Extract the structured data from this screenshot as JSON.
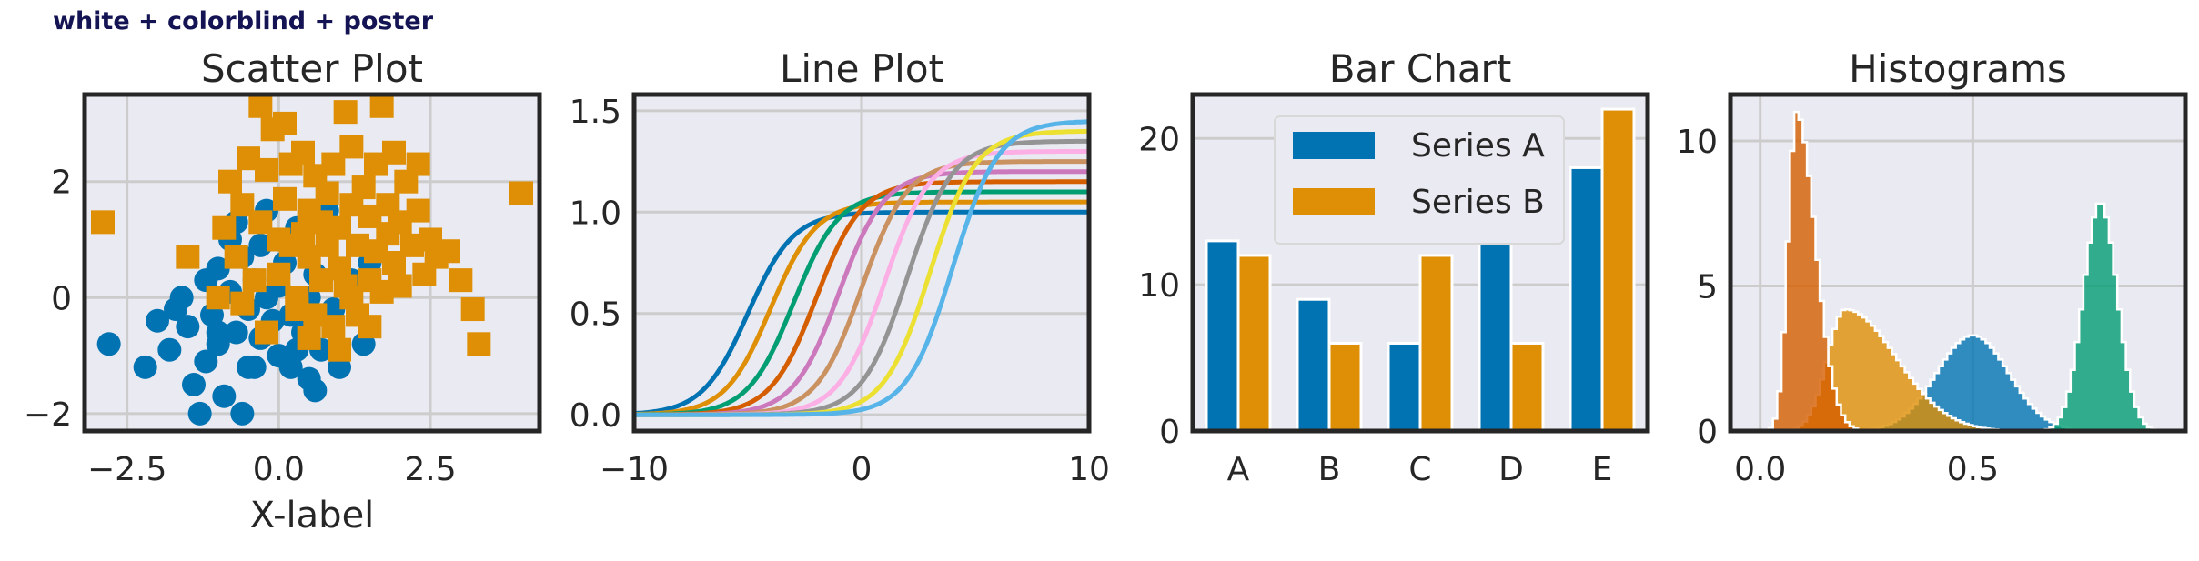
{
  "figure_title": "white + colorblind + poster",
  "colors": {
    "c0": "#0173b2",
    "c1": "#de8f05",
    "c2": "#029e73",
    "c3": "#d55e00",
    "c4": "#cc78bc",
    "c5": "#ca9161",
    "c6": "#fbafe4",
    "c7": "#949494",
    "c8": "#ece133",
    "c9": "#56b4e9",
    "axes_bg": "#eaeaf2",
    "grid": "#cccccc",
    "spine": "#262626"
  },
  "chart_data": [
    {
      "type": "scatter",
      "title": "Scatter Plot",
      "xlabel": "X-label",
      "ylabel": "",
      "xlim": [
        -3.2,
        4.3
      ],
      "ylim": [
        -2.3,
        3.5
      ],
      "xticks": [
        "−2.5",
        "0.0",
        "2.5"
      ],
      "xtick_values": [
        -2.5,
        0,
        2.5
      ],
      "yticks": [
        "−2",
        "0",
        "2"
      ],
      "ytick_values": [
        -2,
        0,
        2
      ],
      "grid": true,
      "series": [
        {
          "marker": "circle",
          "color": "#0173b2",
          "points": [
            [
              -2.8,
              -0.8
            ],
            [
              -2.2,
              -1.2
            ],
            [
              -2.0,
              -0.4
            ],
            [
              -1.8,
              -0.9
            ],
            [
              -1.7,
              -0.2
            ],
            [
              -1.6,
              0.0
            ],
            [
              -1.5,
              -0.5
            ],
            [
              -1.4,
              -1.5
            ],
            [
              -1.3,
              -2.0
            ],
            [
              -1.2,
              0.3
            ],
            [
              -1.2,
              -1.1
            ],
            [
              -1.1,
              -0.3
            ],
            [
              -1.0,
              0.5
            ],
            [
              -1.0,
              -0.8
            ],
            [
              -0.9,
              -1.7
            ],
            [
              -0.8,
              1.0
            ],
            [
              -0.8,
              0.1
            ],
            [
              -0.7,
              -0.6
            ],
            [
              -0.7,
              1.3
            ],
            [
              -0.6,
              -2.0
            ],
            [
              -0.6,
              0.7
            ],
            [
              -0.5,
              -0.2
            ],
            [
              -0.4,
              -1.2
            ],
            [
              -0.4,
              0.3
            ],
            [
              -0.3,
              0.9
            ],
            [
              -0.3,
              -0.7
            ],
            [
              -0.2,
              1.5
            ],
            [
              -0.1,
              -0.4
            ],
            [
              0.0,
              0.2
            ],
            [
              0.0,
              -1.0
            ],
            [
              0.1,
              0.6
            ],
            [
              0.2,
              -0.3
            ],
            [
              0.2,
              -1.2
            ],
            [
              0.3,
              1.2
            ],
            [
              0.4,
              -0.6
            ],
            [
              0.5,
              0.0
            ],
            [
              0.5,
              -1.4
            ],
            [
              0.6,
              0.4
            ],
            [
              0.7,
              -0.9
            ],
            [
              0.8,
              1.5
            ],
            [
              0.9,
              -0.2
            ],
            [
              1.0,
              -1.2
            ],
            [
              1.2,
              0.3
            ],
            [
              1.4,
              -0.8
            ],
            [
              1.5,
              0.6
            ],
            [
              -0.5,
              -1.2
            ],
            [
              -1.0,
              -0.6
            ],
            [
              0.3,
              -0.9
            ],
            [
              -0.2,
              0.0
            ],
            [
              0.6,
              -1.6
            ]
          ]
        },
        {
          "marker": "square",
          "color": "#de8f05",
          "points": [
            [
              -2.9,
              1.3
            ],
            [
              -1.5,
              0.7
            ],
            [
              -1.0,
              0.0
            ],
            [
              -0.9,
              1.2
            ],
            [
              -0.8,
              2.0
            ],
            [
              -0.7,
              0.7
            ],
            [
              -0.6,
              1.6
            ],
            [
              -0.5,
              2.4
            ],
            [
              -0.4,
              0.3
            ],
            [
              -0.3,
              3.3
            ],
            [
              -0.3,
              1.3
            ],
            [
              -0.2,
              2.2
            ],
            [
              -0.2,
              -0.6
            ],
            [
              -0.1,
              2.9
            ],
            [
              0.0,
              0.4
            ],
            [
              0.0,
              1.0
            ],
            [
              0.1,
              3.0
            ],
            [
              0.1,
              1.7
            ],
            [
              0.2,
              2.3
            ],
            [
              0.3,
              0.0
            ],
            [
              0.3,
              -0.2
            ],
            [
              0.4,
              1.1
            ],
            [
              0.4,
              2.5
            ],
            [
              0.5,
              0.7
            ],
            [
              0.5,
              1.5
            ],
            [
              0.6,
              -0.3
            ],
            [
              0.6,
              2.1
            ],
            [
              0.7,
              0.3
            ],
            [
              0.7,
              1.3
            ],
            [
              0.8,
              1.8
            ],
            [
              0.8,
              0.9
            ],
            [
              0.9,
              -0.5
            ],
            [
              0.9,
              2.3
            ],
            [
              1.0,
              0.5
            ],
            [
              1.0,
              1.2
            ],
            [
              1.1,
              3.2
            ],
            [
              1.1,
              0.2
            ],
            [
              1.2,
              1.6
            ],
            [
              1.2,
              2.6
            ],
            [
              1.3,
              0.9
            ],
            [
              1.3,
              -0.3
            ],
            [
              1.4,
              1.9
            ],
            [
              1.5,
              0.3
            ],
            [
              1.5,
              1.4
            ],
            [
              1.6,
              2.3
            ],
            [
              1.6,
              0.8
            ],
            [
              1.7,
              3.3
            ],
            [
              1.7,
              0.1
            ],
            [
              1.8,
              1.6
            ],
            [
              1.8,
              1.1
            ],
            [
              1.9,
              2.5
            ],
            [
              1.9,
              0.6
            ],
            [
              2.0,
              1.3
            ],
            [
              2.0,
              0.2
            ],
            [
              2.1,
              2.0
            ],
            [
              2.2,
              0.9
            ],
            [
              2.3,
              1.5
            ],
            [
              2.4,
              0.4
            ],
            [
              2.5,
              1.0
            ],
            [
              2.6,
              0.7
            ],
            [
              2.8,
              0.8
            ],
            [
              3.0,
              0.3
            ],
            [
              3.2,
              -0.2
            ],
            [
              3.3,
              -0.8
            ],
            [
              4.0,
              1.8
            ],
            [
              1.5,
              -0.5
            ],
            [
              2.3,
              2.3
            ],
            [
              -0.6,
              -0.1
            ],
            [
              0.2,
              0.9
            ],
            [
              1.0,
              -0.9
            ],
            [
              1.2,
              0.0
            ],
            [
              0.5,
              -0.7
            ]
          ]
        }
      ]
    },
    {
      "type": "line",
      "title": "Line Plot",
      "xlabel": "",
      "ylabel": "",
      "xlim": [
        -10,
        10
      ],
      "ylim": [
        -0.08,
        1.58
      ],
      "xticks": [
        "−10",
        "0",
        "10"
      ],
      "xtick_values": [
        -10,
        0,
        10
      ],
      "yticks": [
        "0.0",
        "0.5",
        "1.0",
        "1.5"
      ],
      "ytick_values": [
        0,
        0.5,
        1.0,
        1.5
      ],
      "grid": true,
      "series": [
        {
          "center": -5,
          "height": 1.0,
          "color": "#0173b2"
        },
        {
          "center": -4,
          "height": 1.05,
          "color": "#de8f05"
        },
        {
          "center": -3,
          "height": 1.1,
          "color": "#029e73"
        },
        {
          "center": -2,
          "height": 1.15,
          "color": "#d55e00"
        },
        {
          "center": -1,
          "height": 1.2,
          "color": "#cc78bc"
        },
        {
          "center": 0,
          "height": 1.25,
          "color": "#ca9161"
        },
        {
          "center": 1,
          "height": 1.3,
          "color": "#fbafe4"
        },
        {
          "center": 2,
          "height": 1.35,
          "color": "#949494"
        },
        {
          "center": 3,
          "height": 1.4,
          "color": "#ece133"
        },
        {
          "center": 4,
          "height": 1.45,
          "color": "#56b4e9"
        }
      ]
    },
    {
      "type": "bar",
      "title": "Bar Chart",
      "xlabel": "",
      "ylabel": "",
      "categories": [
        "A",
        "B",
        "C",
        "D",
        "E"
      ],
      "ylim": [
        0,
        23
      ],
      "yticks": [
        "0",
        "10",
        "20"
      ],
      "ytick_values": [
        0,
        10,
        20
      ],
      "grid": true,
      "legend": "top-center",
      "series": [
        {
          "name": "Series A",
          "values": [
            13,
            9,
            6,
            19,
            18
          ],
          "color": "#0173b2"
        },
        {
          "name": "Series B",
          "values": [
            12,
            6,
            12,
            6,
            22
          ],
          "color": "#de8f05"
        }
      ]
    },
    {
      "type": "area",
      "title": "Histograms",
      "xlabel": "",
      "ylabel": "",
      "xlim": [
        -0.07,
        1.0
      ],
      "ylim": [
        0,
        11.6
      ],
      "xticks": [
        "0.0",
        "0.5"
      ],
      "xtick_values": [
        0,
        0.5
      ],
      "yticks": [
        "0",
        "5",
        "10"
      ],
      "ytick_values": [
        0,
        5,
        10
      ],
      "grid": true,
      "series": [
        {
          "color": "#0173b2",
          "peak_x": 0.5,
          "peak_height": 3.3
        },
        {
          "color": "#de8f05",
          "peak_x": 0.2,
          "peak_height": 4.2
        },
        {
          "color": "#029e73",
          "peak_x": 0.8,
          "peak_height": 7.9
        },
        {
          "color": "#d55e00",
          "peak_x": 0.08,
          "peak_height": 11.0
        }
      ]
    }
  ]
}
